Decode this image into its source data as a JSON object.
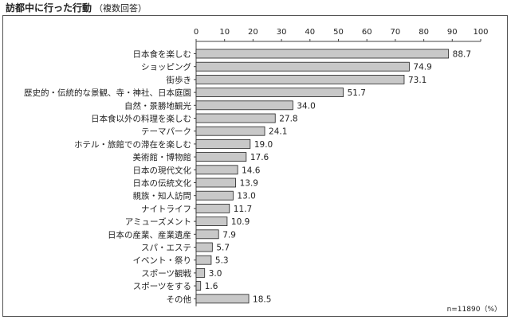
{
  "header": {
    "title": "訪都中に行った行動",
    "subtitle": "（複数回答）"
  },
  "footer": {
    "note": "n=11890（%）"
  },
  "colors": {
    "bar_fill": "#c8c8c8",
    "bar_stroke": "#222222",
    "axis": "#444444"
  },
  "chart_data": {
    "type": "bar",
    "orientation": "horizontal",
    "title": "訪都中に行った行動",
    "subtitle": "（複数回答）",
    "xlim": [
      0,
      100
    ],
    "xticks": [
      0,
      10,
      20,
      30,
      40,
      50,
      60,
      70,
      80,
      90,
      100
    ],
    "grid": false,
    "categories": [
      "日本食を楽しむ",
      "ショッピング",
      "街歩き",
      "歴史的・伝統的な景観、寺・神社、日本庭園",
      "自然・景勝地観光",
      "日本食以外の料理を楽しむ",
      "テーマパーク",
      "ホテル・旅館での滞在を楽しむ",
      "美術館・博物館",
      "日本の現代文化",
      "日本の伝統文化",
      "親族・知人訪問",
      "ナイトライフ",
      "アミューズメント",
      "日本の産業、産業遺産",
      "スパ・エステ",
      "イベント・祭り",
      "スポーツ観戦",
      "スポーツをする",
      "その他"
    ],
    "values": [
      88.7,
      74.9,
      73.1,
      51.7,
      34.0,
      27.8,
      24.1,
      19.0,
      17.6,
      14.6,
      13.9,
      13.0,
      11.7,
      10.9,
      7.9,
      5.7,
      5.3,
      3.0,
      1.6,
      18.5
    ],
    "value_labels": [
      "88.7",
      "74.9",
      "73.1",
      "51.7",
      "34.0",
      "27.8",
      "24.1",
      "19.0",
      "17.6",
      "14.6",
      "13.9",
      "13.0",
      "11.7",
      "10.9",
      "7.9",
      "5.7",
      "5.3",
      "3.0",
      "1.6",
      "18.5"
    ]
  }
}
